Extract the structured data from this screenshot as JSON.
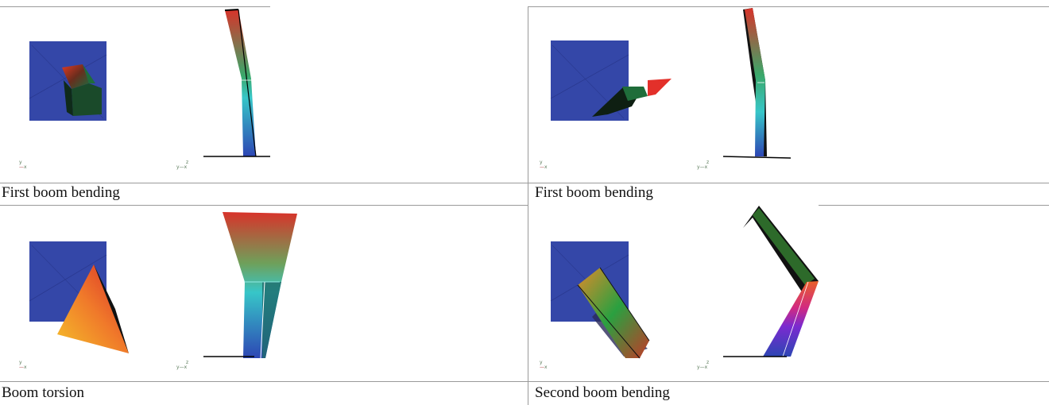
{
  "panels": [
    {
      "caption": "First boom bending",
      "axes_front": [
        "y",
        "x"
      ],
      "axes_side": [
        "z",
        "y",
        "x"
      ]
    },
    {
      "caption": "First boom bending",
      "axes_front": [
        "y",
        "x"
      ],
      "axes_side": [
        "z",
        "y",
        "x"
      ]
    },
    {
      "caption": "Boom torsion",
      "axes_front": [
        "y",
        "x"
      ],
      "axes_side": [
        "z",
        "y",
        "x"
      ]
    },
    {
      "caption": "Second boom bending",
      "axes_front": [
        "y",
        "x"
      ],
      "axes_side": [
        "z",
        "y",
        "x"
      ]
    }
  ],
  "colors": {
    "panel_blue": "#3447a8",
    "grid_line": "#9a9a9a"
  }
}
